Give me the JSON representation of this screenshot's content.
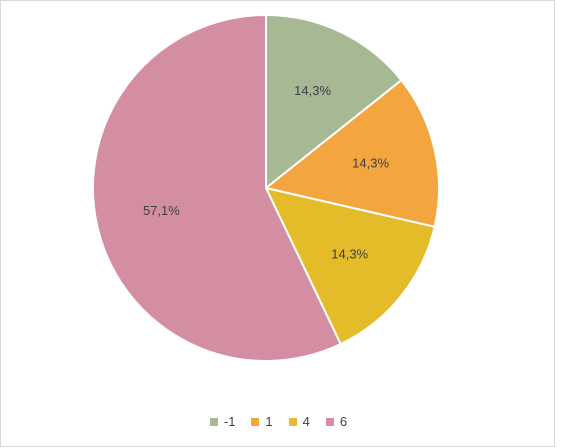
{
  "chart_data": {
    "type": "pie",
    "title": "",
    "categories": [
      "-1",
      "1",
      "4",
      "6"
    ],
    "values": [
      14.3,
      14.3,
      14.3,
      57.1
    ],
    "data_labels": [
      "14,3%",
      "14,3%",
      "14,3%",
      "57,1%"
    ],
    "colors": [
      "#a6b894",
      "#f3a53f",
      "#e4bb28",
      "#d48ea2"
    ],
    "legend": {
      "position": "bottom",
      "entries": [
        "-1",
        "1",
        "4",
        "6"
      ]
    },
    "start_angle": "12 o'clock",
    "direction": "clockwise"
  }
}
